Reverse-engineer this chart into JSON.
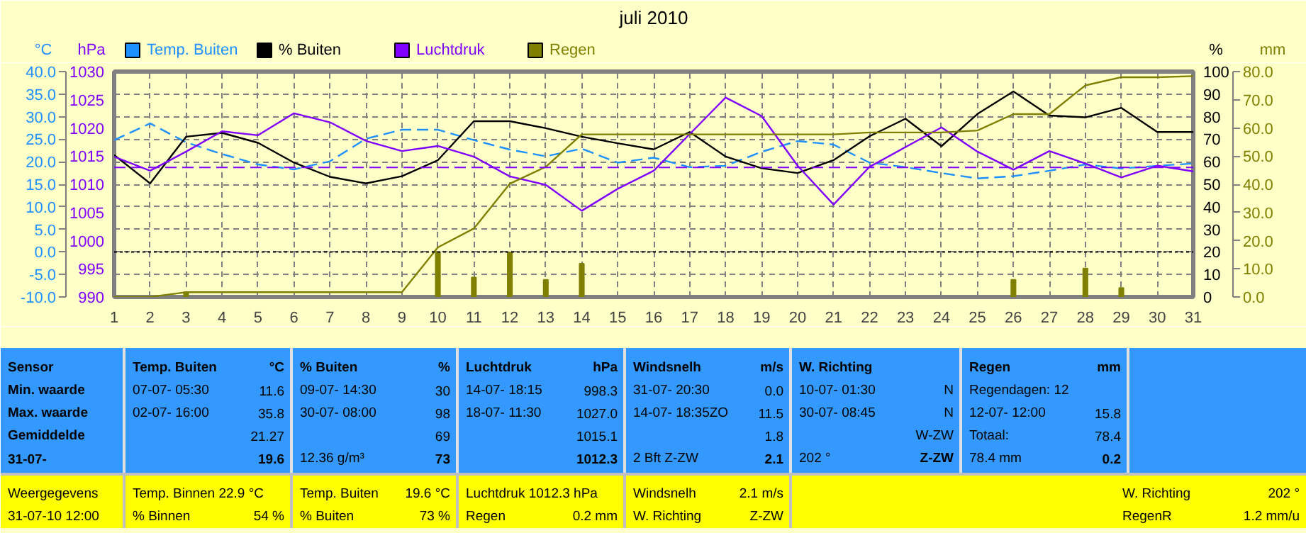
{
  "chart_data": [
    {
      "type": "line",
      "title": "juli 2010",
      "x": [
        1,
        2,
        3,
        4,
        5,
        6,
        7,
        8,
        9,
        10,
        11,
        12,
        13,
        14,
        15,
        16,
        17,
        18,
        19,
        20,
        21,
        22,
        23,
        24,
        25,
        26,
        27,
        28,
        29,
        30,
        31
      ],
      "xlim": [
        1,
        31
      ],
      "xticks": [
        1,
        2,
        3,
        4,
        5,
        6,
        7,
        8,
        9,
        10,
        11,
        12,
        13,
        14,
        15,
        16,
        17,
        18,
        19,
        20,
        21,
        22,
        23,
        24,
        25,
        26,
        27,
        28,
        29,
        30,
        31
      ],
      "ylabel": "°C",
      "ylim": [
        -10,
        40
      ],
      "yticks": [
        {
          "value": -10,
          "label": "-10.0"
        },
        {
          "value": -5,
          "label": "-5.0"
        },
        {
          "value": 0,
          "label": "0.0"
        },
        {
          "value": 5,
          "label": "5.0"
        },
        {
          "value": 10,
          "label": "10.0"
        },
        {
          "value": 15,
          "label": "15.0"
        },
        {
          "value": 20,
          "label": "20.0"
        },
        {
          "value": 25,
          "label": "25.0"
        },
        {
          "value": 30,
          "label": "30.0"
        },
        {
          "value": 35,
          "label": "35.0"
        },
        {
          "value": 40,
          "label": "40.0"
        }
      ],
      "y2label": "hPa",
      "y2lim": [
        990,
        1030
      ],
      "y2ticks": [
        990,
        995,
        1000,
        1005,
        1010,
        1015,
        1020,
        1025,
        1030
      ],
      "y3label": "%",
      "y3lim": [
        0,
        100
      ],
      "y3ticks": [
        0,
        10,
        20,
        30,
        40,
        50,
        60,
        70,
        80,
        90,
        100
      ],
      "grid": true,
      "legend": "top",
      "series": [
        {
          "name": "Temp. Buiten",
          "color": "#1e90ff",
          "axis": "y",
          "line_style": "dashed",
          "values": [
            24.8,
            28.5,
            24.3,
            21.7,
            19.4,
            18.3,
            20.1,
            25.1,
            27.1,
            27.1,
            24.8,
            22.7,
            21.2,
            22.9,
            19.8,
            20.9,
            18.8,
            19.1,
            22.2,
            24.6,
            23.8,
            19.8,
            18.8,
            17.5,
            16.3,
            16.8,
            18.0,
            19.4,
            18.5,
            19.1,
            19.6
          ]
        },
        {
          "name": "% Buiten",
          "color": "#000000",
          "axis": "y3",
          "values": [
            63.0,
            50.4,
            71.1,
            72.8,
            68.4,
            59.6,
            53.3,
            50.4,
            53.6,
            60.7,
            78.0,
            78.0,
            74.9,
            71.1,
            68.2,
            65.5,
            73.2,
            62.3,
            57.1,
            55.0,
            60.7,
            71.3,
            79.1,
            66.9,
            81.2,
            91.2,
            80.5,
            79.7,
            83.9,
            73.2,
            73.2
          ]
        },
        {
          "name": "Luchtdruk",
          "color": "#8000ff",
          "axis": "y2",
          "values": [
            1014.9,
            1012.4,
            1015.8,
            1019.4,
            1018.7,
            1022.6,
            1021.0,
            1017.7,
            1015.9,
            1016.8,
            1014.9,
            1011.4,
            1009.9,
            1005.3,
            1009.2,
            1012.4,
            1018.9,
            1025.4,
            1022.1,
            1013.3,
            1006.4,
            1013.1,
            1016.6,
            1020.1,
            1015.8,
            1012.6,
            1015.9,
            1013.7,
            1011.2,
            1013.3,
            1012.3
          ]
        }
      ],
      "ref_lines": [
        {
          "axis": "y2",
          "value": 1013,
          "color": "#8000ff",
          "line_style": "dashed"
        },
        {
          "axis": "y",
          "value": 0,
          "color": "#000000",
          "line_style": "dotted"
        }
      ],
      "annotations": [
        "Sensor",
        "Min. waarde",
        "Max. waarde",
        "Gemiddelde",
        "31-07-",
        "Temp. Buiten",
        "°C",
        "07-07-  05:30",
        "11.6",
        "02-07-  16:00",
        "35.8",
        "21.27",
        "19.6",
        "% Buiten",
        "%",
        "09-07-  14:30",
        "30",
        "30-07-  08:00",
        "98",
        "69",
        "12.36 g/m³",
        "73",
        "Luchtdruk",
        "hPa",
        "14-07-  18:15",
        "998.3",
        "18-07-  11:30",
        "1027.0",
        "1015.1",
        "1012.3",
        "Windsnelh",
        "m/s",
        "31-07-  20:30",
        "0.0",
        "14-07-  18:35ZO",
        "11.5",
        "1.8",
        "2 Bft Z-ZW",
        "2.1",
        "W. Richting",
        "10-07-  01:30",
        "N",
        "30-07-  08:45",
        "N",
        "W-ZW",
        "202 °",
        "Z-ZW",
        "Regen",
        "mm",
        "Regendagen: 12",
        "12-07-  12:00",
        "15.8",
        "Totaal:",
        "78.4",
        "78.4 mm",
        "0.2",
        "Weergegevens",
        "31-07-10 12:00",
        "Temp. Binnen 22.9 °C",
        "% Binnen",
        "54 %",
        "Temp. Buiten",
        "19.6 °C",
        "% Buiten",
        "73 %",
        "Luchtdruk 1012.3 hPa",
        "Regen",
        "0.2 mm",
        "Windsnelh",
        "2.1 m/s",
        "W. Richting",
        "Z-ZW",
        "W. Richting",
        "202 °",
        "RegenR",
        "1.2 mm/u"
      ]
    },
    {
      "type": "line",
      "tick_labels": "y",
      "x": [
        1,
        2,
        3,
        4,
        5,
        6,
        7,
        8,
        9,
        10,
        11,
        12,
        13,
        14,
        15,
        16,
        17,
        18,
        19,
        20,
        21,
        22,
        23,
        24,
        25,
        26,
        27,
        28,
        29,
        30,
        31
      ],
      "xlim": [
        1,
        31
      ],
      "ylabel": "mm",
      "ylim": [
        0,
        80
      ],
      "yticks": [
        {
          "value": 0,
          "label": "0.0"
        },
        {
          "value": 10,
          "label": "10.0"
        },
        {
          "value": 20,
          "label": "20.0"
        },
        {
          "value": 30,
          "label": "30.0"
        },
        {
          "value": 40,
          "label": "40.0"
        },
        {
          "value": 50,
          "label": "50.0"
        },
        {
          "value": 60,
          "label": "60.0"
        },
        {
          "value": 70,
          "label": "70.0"
        },
        {
          "value": 80,
          "label": "80.0"
        }
      ],
      "legend": "top",
      "series": [
        {
          "name": "Regen",
          "color": "#808000",
          "values": [
            0,
            0,
            1.7,
            1.7,
            1.7,
            1.7,
            1.7,
            1.7,
            1.7,
            17.6,
            24.3,
            40.2,
            46.2,
            57.7,
            57.7,
            57.7,
            57.7,
            57.7,
            57.7,
            57.7,
            57.7,
            58.4,
            58.4,
            58.4,
            59.1,
            64.9,
            64.9,
            75.1,
            78.0,
            78.0,
            78.4
          ]
        },
        {
          "type": "bar",
          "color": "#808000",
          "values": [
            null,
            null,
            1.7,
            null,
            null,
            null,
            null,
            null,
            null,
            15.9,
            6.9,
            15.8,
            6.1,
            11.8,
            null,
            null,
            null,
            null,
            null,
            null,
            null,
            null,
            null,
            null,
            null,
            6.1,
            null,
            10.1,
            3.2,
            null,
            null
          ]
        }
      ]
    }
  ]
}
